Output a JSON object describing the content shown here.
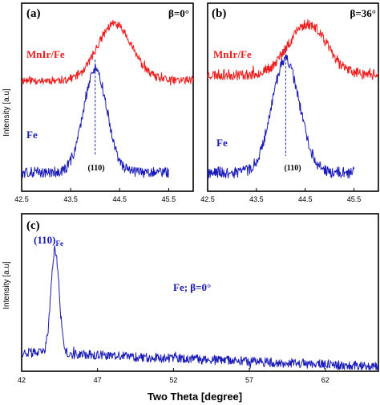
{
  "colors": {
    "mnir_fe": "#ee1c1c",
    "fe": "#1a1ab8",
    "frame": "#000000"
  },
  "y_axis_title": "Intensity [a.u]",
  "x_axis_title": "Two Theta [degree]",
  "chart_data": [
    {
      "type": "line",
      "panel": "(a)",
      "note": "β=0°",
      "x_ticks": [
        "42.5",
        "43.5",
        "44.5",
        "45.5"
      ],
      "xlim": [
        42.5,
        46.0
      ],
      "ylim": [
        0,
        1
      ],
      "series": [
        {
          "name": "MnIr/Fe",
          "color": "#ee1c1c",
          "x_start": 42.5,
          "x_end": 46.0,
          "baseline": 0.59,
          "peak_x": 44.4,
          "peak_height": 0.3,
          "width": 0.5,
          "noise": 0.022
        },
        {
          "name": "Fe",
          "color": "#1a1ab8",
          "x_start": 42.5,
          "x_end": 45.5,
          "baseline": 0.1,
          "peak_x": 44.0,
          "peak_height": 0.55,
          "width": 0.34,
          "noise": 0.028
        }
      ],
      "marker": {
        "x": 44.0,
        "label": "(110)"
      }
    },
    {
      "type": "line",
      "panel": "(b)",
      "note": "β=36°",
      "x_ticks": [
        "42.5",
        "43.5",
        "44.5",
        "45.5"
      ],
      "xlim": [
        42.5,
        46.0
      ],
      "ylim": [
        0,
        1
      ],
      "series": [
        {
          "name": "MnIr/Fe",
          "color": "#ee1c1c",
          "x_start": 42.5,
          "x_end": 46.0,
          "baseline": 0.62,
          "peak_x": 44.55,
          "peak_height": 0.27,
          "width": 0.55,
          "noise": 0.028
        },
        {
          "name": "Fe",
          "color": "#1a1ab8",
          "x_start": 42.5,
          "x_end": 45.5,
          "baseline": 0.1,
          "peak_x": 44.1,
          "peak_height": 0.6,
          "width": 0.4,
          "noise": 0.03
        }
      ],
      "marker": {
        "x": 44.1,
        "label": "(110)"
      }
    },
    {
      "type": "line",
      "panel": "(c)",
      "note": "Fe; β=0°",
      "x_ticks": [
        "42",
        "47",
        "52",
        "57",
        "62"
      ],
      "xlim": [
        42,
        65.5
      ],
      "ylim": [
        0,
        1
      ],
      "series": [
        {
          "name": "Fe",
          "color": "#1a1ab8",
          "x_start": 42,
          "x_end": 65.5,
          "baseline": 0.12,
          "peak_x": 44.2,
          "peak_height": 0.66,
          "width": 0.38,
          "noise": 0.03,
          "slope": -0.09
        }
      ],
      "peak_annotation": {
        "x": 44.2,
        "label": "(110)",
        "subscript": "Fe"
      }
    }
  ]
}
